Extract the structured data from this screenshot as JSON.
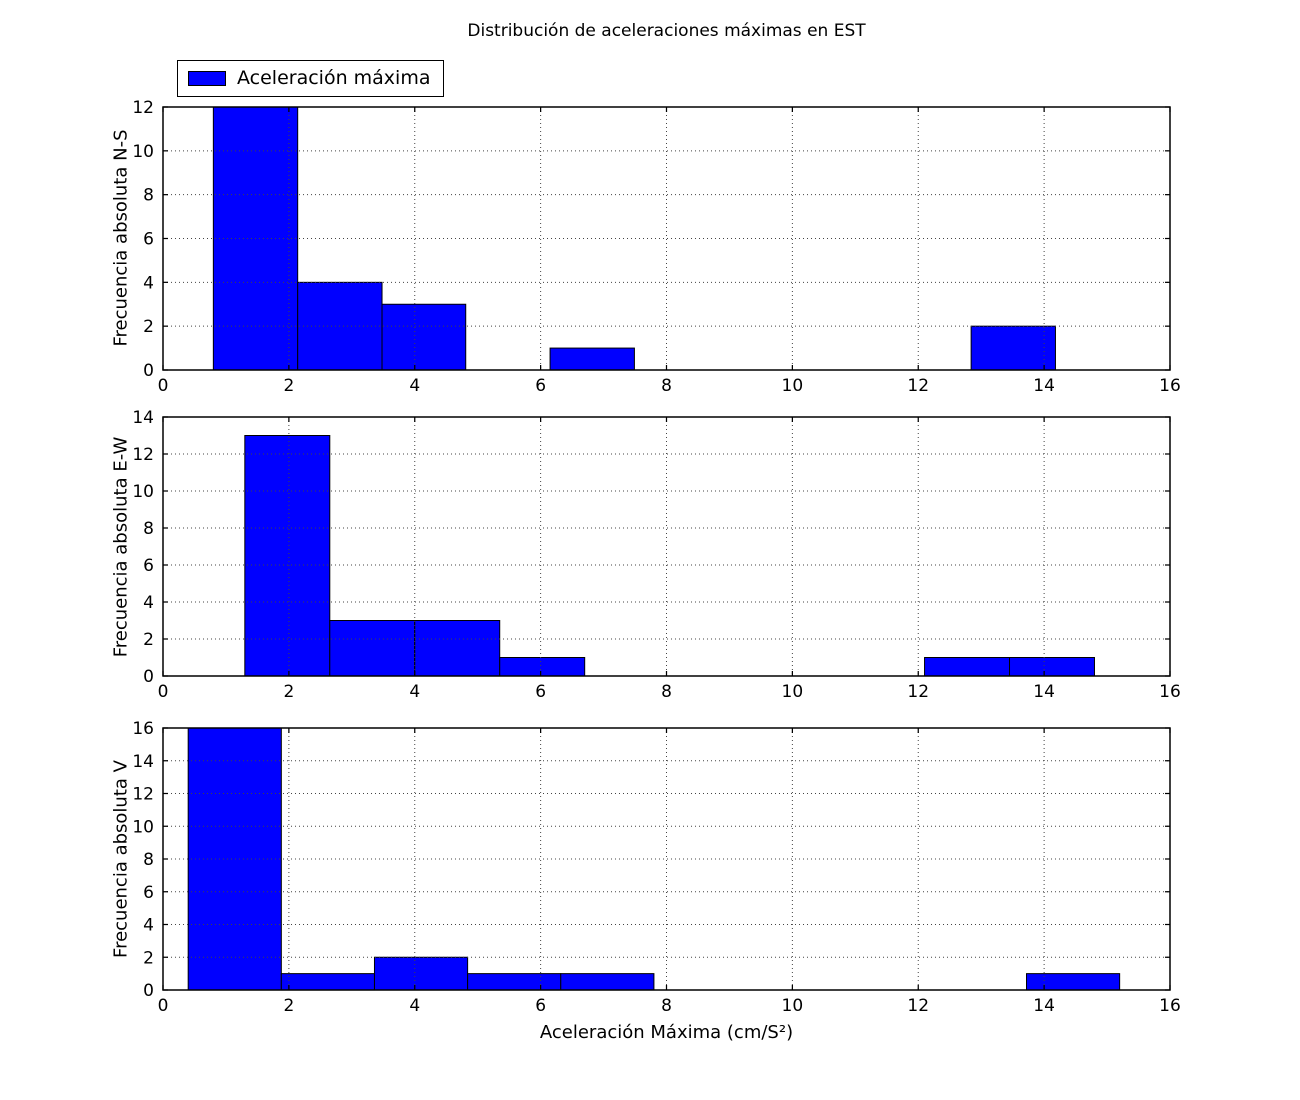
{
  "title": "Distribución de aceleraciones máximas en EST",
  "xlabel": "Aceleración Máxima (cm/S²)",
  "legend": {
    "label": "Aceleración máxima"
  },
  "colors": {
    "bar_fill": "#0000ff",
    "bar_edge": "#000000",
    "axis": "#000000",
    "grid": "#444444",
    "background": "#ffffff",
    "text": "#000000"
  },
  "chart_data": [
    {
      "type": "bar",
      "subtype": "histogram",
      "series_name": "Aceleración máxima",
      "ylabel": "Frecuencia absoluta N-S",
      "bin_edges": [
        0.8,
        2.14,
        3.48,
        4.81,
        6.15,
        7.49,
        8.83,
        10.16,
        11.5,
        12.84,
        14.18
      ],
      "counts": [
        12,
        4,
        3,
        0,
        1,
        0,
        0,
        0,
        0,
        2
      ],
      "xlim": [
        0,
        16
      ],
      "ylim": [
        0,
        12
      ],
      "xticks": [
        0,
        2,
        4,
        6,
        8,
        10,
        12,
        14,
        16
      ],
      "yticks": [
        0,
        2,
        4,
        6,
        8,
        10,
        12
      ],
      "grid": true,
      "legend_position": "above-top-left"
    },
    {
      "type": "bar",
      "subtype": "histogram",
      "series_name": "Aceleración máxima",
      "ylabel": "Frecuencia absoluta E-W",
      "bin_edges": [
        1.3,
        2.65,
        4.0,
        5.35,
        6.7,
        8.05,
        9.4,
        10.75,
        12.1,
        13.45,
        14.8
      ],
      "counts": [
        13,
        3,
        3,
        1,
        0,
        0,
        0,
        0,
        1,
        1
      ],
      "xlim": [
        0,
        16
      ],
      "ylim": [
        0,
        14
      ],
      "xticks": [
        0,
        2,
        4,
        6,
        8,
        10,
        12,
        14,
        16
      ],
      "yticks": [
        0,
        2,
        4,
        6,
        8,
        10,
        12,
        14
      ],
      "grid": true
    },
    {
      "type": "bar",
      "subtype": "histogram",
      "series_name": "Aceleración máxima",
      "ylabel": "Frecuencia absoluta V",
      "bin_edges": [
        0.4,
        1.88,
        3.36,
        4.84,
        6.32,
        7.8,
        9.28,
        10.76,
        12.24,
        13.72,
        15.2
      ],
      "counts": [
        16,
        1,
        2,
        1,
        1,
        0,
        0,
        0,
        0,
        1
      ],
      "xlim": [
        0,
        16
      ],
      "ylim": [
        0,
        16
      ],
      "xticks": [
        0,
        2,
        4,
        6,
        8,
        10,
        12,
        14,
        16
      ],
      "yticks": [
        0,
        2,
        4,
        6,
        8,
        10,
        12,
        14,
        16
      ],
      "grid": true
    }
  ]
}
